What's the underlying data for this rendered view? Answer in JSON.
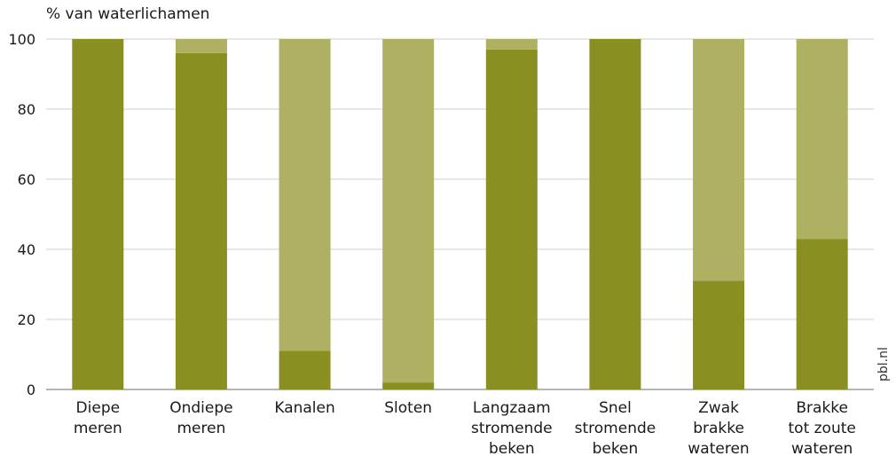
{
  "chart_data": {
    "type": "bar",
    "stacked": true,
    "ylabel": "% van waterlichamen",
    "ylim": [
      0,
      100
    ],
    "yticks": [
      0,
      20,
      40,
      60,
      80,
      100
    ],
    "grid": true,
    "categories": [
      [
        "Diepe",
        "meren"
      ],
      [
        "Ondiepe",
        "meren"
      ],
      [
        "Kanalen"
      ],
      [
        "Sloten"
      ],
      [
        "Langzaam",
        "stromende",
        "beken"
      ],
      [
        "Snel",
        "stromende",
        "beken"
      ],
      [
        "Zwak",
        "brakke",
        "wateren"
      ],
      [
        "Brakke",
        "tot zoute",
        "wateren"
      ]
    ],
    "series": [
      {
        "values": [
          100,
          96,
          11,
          2,
          97,
          100,
          31,
          43
        ],
        "color": "#8a8f22"
      },
      {
        "values": [
          0,
          4,
          89,
          98,
          3,
          0,
          69,
          57
        ],
        "color": "#aeb062"
      }
    ]
  },
  "watermark": "pbl.nl"
}
